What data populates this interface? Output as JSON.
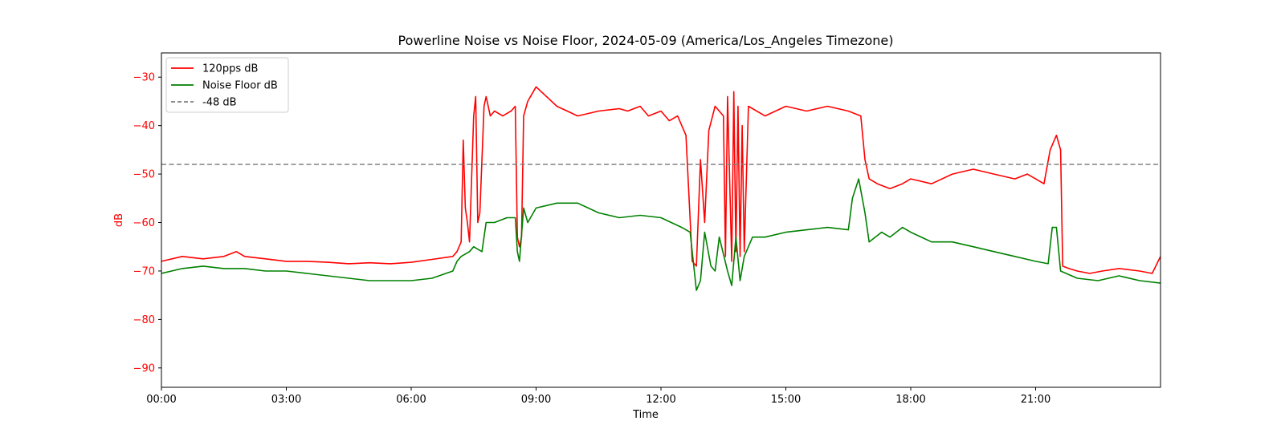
{
  "chart_data": {
    "type": "line",
    "title": "Powerline Noise vs Noise Floor, 2024-05-09 (America/Los_Angeles Timezone)",
    "xlabel": "Time",
    "ylabel": "dB",
    "x_range_hours": [
      0,
      24
    ],
    "ylim": [
      -94,
      -25
    ],
    "x_ticks": [
      {
        "hour": 0,
        "label": "00:00"
      },
      {
        "hour": 3,
        "label": "03:00"
      },
      {
        "hour": 6,
        "label": "06:00"
      },
      {
        "hour": 9,
        "label": "09:00"
      },
      {
        "hour": 12,
        "label": "12:00"
      },
      {
        "hour": 15,
        "label": "15:00"
      },
      {
        "hour": 18,
        "label": "18:00"
      },
      {
        "hour": 21,
        "label": "21:00"
      }
    ],
    "y_ticks": [
      {
        "value": -30,
        "label": "−30"
      },
      {
        "value": -40,
        "label": "−40"
      },
      {
        "value": -50,
        "label": "−50"
      },
      {
        "value": -60,
        "label": "−60"
      },
      {
        "value": -70,
        "label": "−70"
      },
      {
        "value": -80,
        "label": "−80"
      },
      {
        "value": -90,
        "label": "−90"
      }
    ],
    "grid": false,
    "legend_position": "upper-left",
    "ylabel_color": "#ff0000",
    "series": [
      {
        "name": "120pps dB",
        "color": "#ff0000",
        "style": "solid",
        "points": [
          [
            0,
            -68
          ],
          [
            0.5,
            -67
          ],
          [
            1,
            -67.5
          ],
          [
            1.5,
            -67
          ],
          [
            1.8,
            -66
          ],
          [
            2,
            -67
          ],
          [
            2.5,
            -67.5
          ],
          [
            3,
            -68
          ],
          [
            3.5,
            -68
          ],
          [
            4,
            -68.2
          ],
          [
            4.5,
            -68.5
          ],
          [
            5,
            -68.3
          ],
          [
            5.5,
            -68.5
          ],
          [
            6,
            -68.2
          ],
          [
            6.5,
            -67.6
          ],
          [
            7,
            -67
          ],
          [
            7.1,
            -66
          ],
          [
            7.2,
            -64
          ],
          [
            7.25,
            -43
          ],
          [
            7.3,
            -57
          ],
          [
            7.35,
            -60
          ],
          [
            7.4,
            -64
          ],
          [
            7.5,
            -38
          ],
          [
            7.55,
            -34
          ],
          [
            7.6,
            -60
          ],
          [
            7.65,
            -58
          ],
          [
            7.75,
            -36
          ],
          [
            7.8,
            -34
          ],
          [
            7.9,
            -38
          ],
          [
            8,
            -37
          ],
          [
            8.2,
            -38
          ],
          [
            8.4,
            -37
          ],
          [
            8.5,
            -36
          ],
          [
            8.55,
            -63
          ],
          [
            8.6,
            -65
          ],
          [
            8.65,
            -63
          ],
          [
            8.7,
            -38
          ],
          [
            8.8,
            -35
          ],
          [
            9,
            -32
          ],
          [
            9.5,
            -36
          ],
          [
            10,
            -38
          ],
          [
            10.5,
            -37
          ],
          [
            11,
            -36.5
          ],
          [
            11.2,
            -37
          ],
          [
            11.5,
            -36
          ],
          [
            11.7,
            -38
          ],
          [
            12,
            -37
          ],
          [
            12.2,
            -39
          ],
          [
            12.4,
            -38
          ],
          [
            12.6,
            -42
          ],
          [
            12.75,
            -68
          ],
          [
            12.85,
            -69
          ],
          [
            12.95,
            -47
          ],
          [
            13.05,
            -60
          ],
          [
            13.15,
            -41
          ],
          [
            13.3,
            -36
          ],
          [
            13.5,
            -38
          ],
          [
            13.55,
            -67
          ],
          [
            13.6,
            -34
          ],
          [
            13.7,
            -68
          ],
          [
            13.75,
            -33
          ],
          [
            13.8,
            -66
          ],
          [
            13.85,
            -36
          ],
          [
            13.9,
            -67
          ],
          [
            13.95,
            -40
          ],
          [
            14,
            -66
          ],
          [
            14.1,
            -36
          ],
          [
            14.5,
            -38
          ],
          [
            15,
            -36
          ],
          [
            15.5,
            -37
          ],
          [
            16,
            -36
          ],
          [
            16.5,
            -37
          ],
          [
            16.8,
            -38
          ],
          [
            16.9,
            -47
          ],
          [
            17,
            -51
          ],
          [
            17.2,
            -52
          ],
          [
            17.5,
            -53
          ],
          [
            17.8,
            -52
          ],
          [
            18,
            -51
          ],
          [
            18.5,
            -52
          ],
          [
            19,
            -50
          ],
          [
            19.5,
            -49
          ],
          [
            20,
            -50
          ],
          [
            20.5,
            -51
          ],
          [
            20.8,
            -50
          ],
          [
            21,
            -51
          ],
          [
            21.2,
            -52
          ],
          [
            21.35,
            -45
          ],
          [
            21.5,
            -42
          ],
          [
            21.6,
            -45
          ],
          [
            21.65,
            -69
          ],
          [
            21.8,
            -69.5
          ],
          [
            22,
            -70
          ],
          [
            22.3,
            -70.5
          ],
          [
            22.6,
            -70
          ],
          [
            23,
            -69.5
          ],
          [
            23.5,
            -70
          ],
          [
            23.8,
            -70.5
          ],
          [
            24,
            -67
          ]
        ]
      },
      {
        "name": "Noise Floor dB",
        "color": "#008000",
        "style": "solid",
        "points": [
          [
            0,
            -70.5
          ],
          [
            0.5,
            -69.5
          ],
          [
            1,
            -69
          ],
          [
            1.5,
            -69.5
          ],
          [
            2,
            -69.5
          ],
          [
            2.5,
            -70
          ],
          [
            3,
            -70
          ],
          [
            3.5,
            -70.5
          ],
          [
            4,
            -71
          ],
          [
            4.5,
            -71.5
          ],
          [
            5,
            -72
          ],
          [
            5.5,
            -72
          ],
          [
            6,
            -72
          ],
          [
            6.5,
            -71.5
          ],
          [
            7,
            -70
          ],
          [
            7.1,
            -68
          ],
          [
            7.2,
            -67
          ],
          [
            7.4,
            -66
          ],
          [
            7.5,
            -65
          ],
          [
            7.6,
            -65.5
          ],
          [
            7.7,
            -66
          ],
          [
            7.8,
            -60
          ],
          [
            8,
            -60
          ],
          [
            8.3,
            -59
          ],
          [
            8.5,
            -59
          ],
          [
            8.55,
            -66
          ],
          [
            8.6,
            -68
          ],
          [
            8.7,
            -57
          ],
          [
            8.8,
            -60
          ],
          [
            9,
            -57
          ],
          [
            9.5,
            -56
          ],
          [
            10,
            -56
          ],
          [
            10.5,
            -58
          ],
          [
            11,
            -59
          ],
          [
            11.5,
            -58.5
          ],
          [
            12,
            -59
          ],
          [
            12.5,
            -61
          ],
          [
            12.7,
            -62
          ],
          [
            12.85,
            -74
          ],
          [
            12.95,
            -72
          ],
          [
            13.05,
            -62
          ],
          [
            13.2,
            -69
          ],
          [
            13.3,
            -70
          ],
          [
            13.4,
            -63
          ],
          [
            13.6,
            -70
          ],
          [
            13.7,
            -73
          ],
          [
            13.8,
            -63
          ],
          [
            13.9,
            -72
          ],
          [
            14,
            -67
          ],
          [
            14.2,
            -63
          ],
          [
            14.5,
            -63
          ],
          [
            15,
            -62
          ],
          [
            15.5,
            -61.5
          ],
          [
            16,
            -61
          ],
          [
            16.5,
            -61.5
          ],
          [
            16.6,
            -55
          ],
          [
            16.75,
            -51
          ],
          [
            16.9,
            -58
          ],
          [
            17,
            -64
          ],
          [
            17.3,
            -62
          ],
          [
            17.5,
            -63
          ],
          [
            17.8,
            -61
          ],
          [
            18,
            -62
          ],
          [
            18.5,
            -64
          ],
          [
            19,
            -64
          ],
          [
            19.5,
            -65
          ],
          [
            20,
            -66
          ],
          [
            20.5,
            -67
          ],
          [
            21,
            -68
          ],
          [
            21.3,
            -68.5
          ],
          [
            21.4,
            -61
          ],
          [
            21.5,
            -61
          ],
          [
            21.6,
            -70
          ],
          [
            22,
            -71.5
          ],
          [
            22.5,
            -72
          ],
          [
            23,
            -71
          ],
          [
            23.5,
            -72
          ],
          [
            24,
            -72.5
          ]
        ]
      },
      {
        "name": "-48 dB",
        "color": "#808080",
        "style": "dashed",
        "points": [
          [
            0,
            -48
          ],
          [
            24,
            -48
          ]
        ]
      }
    ]
  }
}
